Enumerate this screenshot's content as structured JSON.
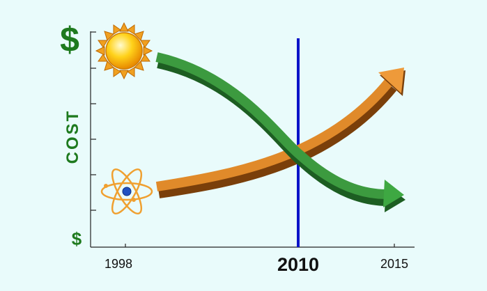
{
  "y_axis": {
    "top_label": "$",
    "title": "COST",
    "bottom_label": "$"
  },
  "x_axis": {
    "start": "1998",
    "marker": "2010",
    "end": "2015"
  }
}
